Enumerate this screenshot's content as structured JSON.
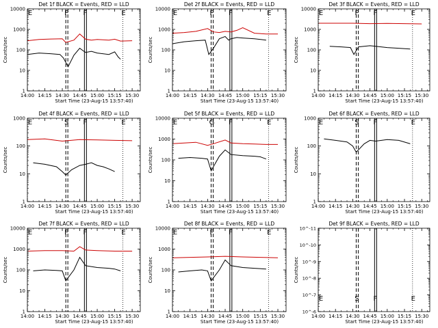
{
  "figure": {
    "x_label": "Start Time (23-Aug-15 13:57:40)",
    "y_label": "Counts/sec",
    "time_ticks": [
      "14:00",
      "14:15",
      "14:30",
      "14:45",
      "15:00",
      "15:15",
      "15:30"
    ],
    "y_ticks_counts": [
      "1",
      "10",
      "100",
      "1000",
      "10000"
    ],
    "y_ticks_small": [
      "10^-11",
      "10^-10",
      "10^-9",
      "10^-8",
      "10^-7",
      "10^-6"
    ],
    "colors": {
      "events": "#000000",
      "lld": "#cc0000",
      "axis": "#000000"
    }
  },
  "chart_data": [
    {
      "type": "line",
      "title": "Det 1f BLACK = Events, RED = LLD",
      "xlabel": "Start Time (23-Aug-15 13:57:40)",
      "ylabel": "Counts/sec",
      "x_range": [
        "14:00",
        "15:37"
      ],
      "ylim": [
        1,
        10000
      ],
      "y_scale": "log",
      "markers": [
        {
          "label": "E",
          "x": "14:00"
        },
        {
          "label": "P",
          "x": "14:33"
        },
        {
          "label": "F",
          "x": "14:49"
        },
        {
          "label": "E",
          "x": "15:22"
        }
      ],
      "series": [
        {
          "name": "LLD",
          "color": "#cc0000",
          "x": [
            "14:00",
            "14:10",
            "14:20",
            "14:30",
            "14:33",
            "14:40",
            "14:45",
            "14:50",
            "14:55",
            "15:00",
            "15:10",
            "15:15",
            "15:20",
            "15:30"
          ],
          "y": [
            280,
            320,
            340,
            350,
            230,
            300,
            600,
            330,
            300,
            320,
            300,
            330,
            270,
            280
          ]
        },
        {
          "name": "Events",
          "color": "#000000",
          "x": [
            "14:00",
            "14:10",
            "14:20",
            "14:28",
            "14:31",
            "14:35",
            "14:40",
            "14:45",
            "14:48",
            "14:50",
            "14:55",
            "15:00",
            "15:10",
            "15:15",
            "15:18",
            "15:20"
          ],
          "y": [
            60,
            70,
            65,
            60,
            40,
            15,
            55,
            120,
            90,
            75,
            85,
            70,
            60,
            80,
            45,
            35
          ]
        }
      ]
    },
    {
      "type": "line",
      "title": "Det 2f BLACK = Events, RED = LLD",
      "xlabel": "Start Time (23-Aug-15 13:57:40)",
      "ylabel": "Counts/sec",
      "x_range": [
        "14:00",
        "15:37"
      ],
      "ylim": [
        1,
        10000
      ],
      "y_scale": "log",
      "markers": [
        {
          "label": "E",
          "x": "14:00"
        },
        {
          "label": "P",
          "x": "14:33"
        },
        {
          "label": "F",
          "x": "14:49"
        },
        {
          "label": "E",
          "x": "15:22"
        }
      ],
      "series": [
        {
          "name": "LLD",
          "color": "#cc0000",
          "x": [
            "14:00",
            "14:10",
            "14:20",
            "14:30",
            "14:35",
            "14:40",
            "14:45",
            "14:50",
            "14:55",
            "15:00",
            "15:10",
            "15:20",
            "15:30"
          ],
          "y": [
            650,
            700,
            800,
            1100,
            750,
            700,
            800,
            750,
            900,
            1200,
            650,
            600,
            600
          ]
        },
        {
          "name": "Events",
          "color": "#000000",
          "x": [
            "14:00",
            "14:10",
            "14:20",
            "14:28",
            "14:31",
            "14:35",
            "14:40",
            "14:45",
            "14:48",
            "14:50",
            "14:55",
            "15:00",
            "15:10",
            "15:20"
          ],
          "y": [
            200,
            250,
            280,
            300,
            60,
            120,
            350,
            450,
            300,
            350,
            400,
            380,
            350,
            300
          ]
        }
      ]
    },
    {
      "type": "line",
      "title": "Det 3f BLACK = Events, RED = LLD",
      "xlabel": "Start Time (23-Aug-15 13:57:40)",
      "ylabel": "Counts/sec",
      "x_range": [
        "14:00",
        "15:37"
      ],
      "ylim": [
        1,
        10000
      ],
      "y_scale": "log",
      "markers": [
        {
          "label": "E",
          "x": "14:00"
        },
        {
          "label": "P",
          "x": "14:33"
        },
        {
          "label": "F",
          "x": "14:49"
        },
        {
          "label": "E",
          "x": "15:22"
        }
      ],
      "series": [
        {
          "name": "LLD",
          "color": "#cc0000",
          "x": [
            "14:00",
            "14:30",
            "14:45",
            "15:00",
            "15:30"
          ],
          "y": [
            2000,
            2000,
            1900,
            1950,
            1850
          ]
        },
        {
          "name": "Events",
          "color": "#000000",
          "x": [
            "14:10",
            "14:20",
            "14:28",
            "14:31",
            "14:35",
            "14:40",
            "14:45",
            "14:50",
            "15:00",
            "15:10",
            "15:20"
          ],
          "y": [
            150,
            140,
            130,
            60,
            140,
            150,
            160,
            150,
            130,
            120,
            110
          ]
        }
      ]
    },
    {
      "type": "line",
      "title": "Det 4f BLACK = Events, RED = LLD",
      "xlabel": "Start Time (23-Aug-15 13:57:40)",
      "ylabel": "Counts/sec",
      "x_range": [
        "14:00",
        "15:37"
      ],
      "ylim": [
        1,
        1000
      ],
      "y_scale": "log",
      "markers": [
        {
          "label": "E",
          "x": "14:00"
        },
        {
          "label": "S",
          "x": "14:33"
        },
        {
          "label": "F",
          "x": "14:49"
        },
        {
          "label": "E",
          "x": "15:22"
        }
      ],
      "series": [
        {
          "name": "LLD",
          "color": "#cc0000",
          "x": [
            "14:00",
            "14:15",
            "14:30",
            "14:45",
            "15:00",
            "15:15",
            "15:30"
          ],
          "y": [
            170,
            180,
            150,
            170,
            165,
            160,
            155
          ]
        },
        {
          "name": "Events",
          "color": "#000000",
          "x": [
            "14:05",
            "14:15",
            "14:25",
            "14:30",
            "14:33",
            "14:38",
            "14:45",
            "14:50",
            "14:55",
            "15:00",
            "15:05",
            "15:10",
            "15:15"
          ],
          "y": [
            25,
            22,
            18,
            12,
            9,
            14,
            20,
            22,
            25,
            20,
            18,
            15,
            12
          ]
        }
      ]
    },
    {
      "type": "line",
      "title": "Det 5f BLACK = Events, RED = LLD",
      "xlabel": "Start Time (23-Aug-15 13:57:40)",
      "ylabel": "Counts/sec",
      "x_range": [
        "14:00",
        "15:37"
      ],
      "ylim": [
        1,
        10000
      ],
      "y_scale": "log",
      "markers": [
        {
          "label": "E",
          "x": "14:00"
        },
        {
          "label": "G",
          "x": "14:33"
        },
        {
          "label": "F",
          "x": "14:49"
        },
        {
          "label": "E",
          "x": "15:22"
        }
      ],
      "series": [
        {
          "name": "LLD",
          "color": "#cc0000",
          "x": [
            "14:00",
            "14:10",
            "14:20",
            "14:30",
            "14:35",
            "14:45",
            "14:50",
            "15:00",
            "15:10",
            "15:20",
            "15:30"
          ],
          "y": [
            600,
            650,
            700,
            500,
            600,
            900,
            650,
            600,
            580,
            550,
            550
          ]
        },
        {
          "name": "Events",
          "color": "#000000",
          "x": [
            "14:05",
            "14:15",
            "14:25",
            "14:30",
            "14:33",
            "14:40",
            "14:45",
            "14:50",
            "15:00",
            "15:10",
            "15:15",
            "15:20"
          ],
          "y": [
            120,
            130,
            120,
            110,
            30,
            150,
            300,
            180,
            160,
            150,
            140,
            110
          ]
        }
      ]
    },
    {
      "type": "line",
      "title": "Det 6f BLACK = Events, RED = LLD",
      "xlabel": "Start Time (23-Aug-15 13:57:40)",
      "ylabel": "Counts/sec",
      "x_range": [
        "14:00",
        "15:37"
      ],
      "ylim": [
        1,
        1000
      ],
      "y_scale": "log",
      "markers": [
        {
          "label": "E",
          "x": "14:00"
        },
        {
          "label": "S",
          "x": "14:33"
        },
        {
          "label": "F",
          "x": "14:49"
        },
        {
          "label": "E",
          "x": "15:22"
        }
      ],
      "series": [
        {
          "name": "Events",
          "color": "#000000",
          "x": [
            "14:05",
            "14:15",
            "14:25",
            "14:30",
            "14:33",
            "14:40",
            "14:45",
            "14:50",
            "15:00",
            "15:10",
            "15:20"
          ],
          "y": [
            180,
            160,
            140,
            100,
            60,
            120,
            160,
            150,
            170,
            160,
            120
          ]
        }
      ]
    },
    {
      "type": "line",
      "title": "Det 7f BLACK = Events, RED = LLD",
      "xlabel": "Start Time (23-Aug-15 13:57:40)",
      "ylabel": "Counts/sec",
      "x_range": [
        "14:00",
        "15:37"
      ],
      "ylim": [
        1,
        10000
      ],
      "y_scale": "log",
      "markers": [
        {
          "label": "E",
          "x": "14:00"
        },
        {
          "label": "P",
          "x": "14:33"
        },
        {
          "label": "F",
          "x": "14:49"
        },
        {
          "label": "E",
          "x": "15:22"
        }
      ],
      "series": [
        {
          "name": "LLD",
          "color": "#cc0000",
          "x": [
            "14:00",
            "14:15",
            "14:30",
            "14:40",
            "14:45",
            "14:50",
            "15:00",
            "15:15",
            "15:30"
          ],
          "y": [
            800,
            850,
            850,
            800,
            1300,
            900,
            850,
            800,
            800
          ]
        },
        {
          "name": "Events",
          "color": "#000000",
          "x": [
            "14:05",
            "14:15",
            "14:25",
            "14:30",
            "14:33",
            "14:40",
            "14:45",
            "14:50",
            "15:00",
            "15:10",
            "15:15",
            "15:20"
          ],
          "y": [
            90,
            100,
            95,
            90,
            30,
            100,
            400,
            160,
            130,
            120,
            110,
            90
          ]
        }
      ]
    },
    {
      "type": "line",
      "title": "Det 8f BLACK = Events, RED = LLD",
      "xlabel": "Start Time (23-Aug-15 13:57:40)",
      "ylabel": "Counts/sec",
      "x_range": [
        "14:00",
        "15:37"
      ],
      "ylim": [
        1,
        10000
      ],
      "y_scale": "log",
      "markers": [
        {
          "label": "E",
          "x": "14:00"
        },
        {
          "label": "P",
          "x": "14:33"
        },
        {
          "label": "F",
          "x": "14:49"
        },
        {
          "label": "E",
          "x": "15:22"
        }
      ],
      "series": [
        {
          "name": "LLD",
          "color": "#cc0000",
          "x": [
            "14:00",
            "14:15",
            "14:30",
            "14:45",
            "15:00",
            "15:15",
            "15:30"
          ],
          "y": [
            380,
            400,
            420,
            450,
            420,
            400,
            380
          ]
        },
        {
          "name": "Events",
          "color": "#000000",
          "x": [
            "14:05",
            "14:15",
            "14:25",
            "14:30",
            "14:33",
            "14:40",
            "14:45",
            "14:50",
            "15:00",
            "15:10",
            "15:20"
          ],
          "y": [
            80,
            90,
            100,
            90,
            30,
            100,
            300,
            160,
            130,
            120,
            110
          ]
        }
      ]
    },
    {
      "type": "line",
      "title": "Det 9f BLACK = Events, RED = LLD",
      "xlabel": "Start Time (23-Aug-15 13:57:40)",
      "ylabel": "Counts/sec",
      "x_range": [
        "14:00",
        "15:37"
      ],
      "ylim": [
        1e-11,
        1e-06
      ],
      "y_scale": "log",
      "markers": [
        {
          "label": "E",
          "x": "14:00"
        },
        {
          "label": "S",
          "x": "14:33"
        },
        {
          "label": "F",
          "x": "14:49"
        },
        {
          "label": "E",
          "x": "15:22"
        }
      ],
      "series": []
    }
  ]
}
